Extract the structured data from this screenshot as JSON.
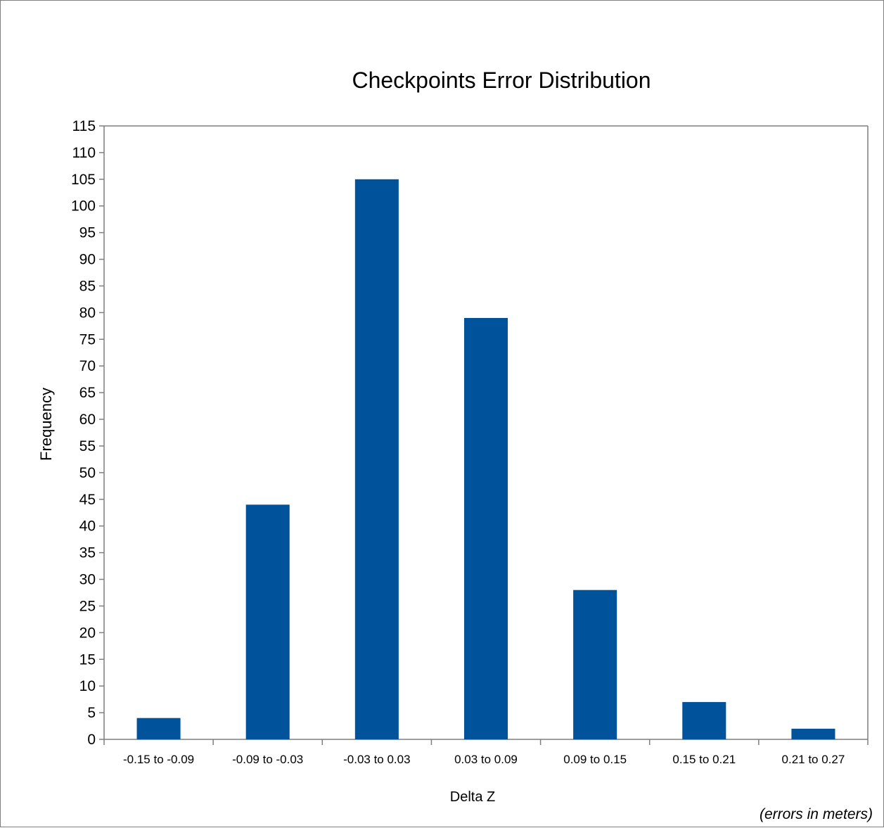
{
  "chart_data": {
    "type": "bar",
    "title": "Checkpoints Error Distribution",
    "xlabel": "Delta Z",
    "ylabel": "Frequency",
    "note": "(errors in meters)",
    "categories": [
      "-0.15 to -0.09",
      "-0.09 to -0.03",
      "-0.03 to 0.03",
      "0.03 to 0.09",
      "0.09 to 0.15",
      "0.15 to 0.21",
      "0.21 to 0.27"
    ],
    "values": [
      4,
      44,
      105,
      79,
      28,
      7,
      2
    ],
    "ylim": [
      0,
      115
    ],
    "ystep": 5,
    "grid": false,
    "legend": "none",
    "bar_color": "#00539a",
    "axis_color": "#7f7f7f"
  }
}
